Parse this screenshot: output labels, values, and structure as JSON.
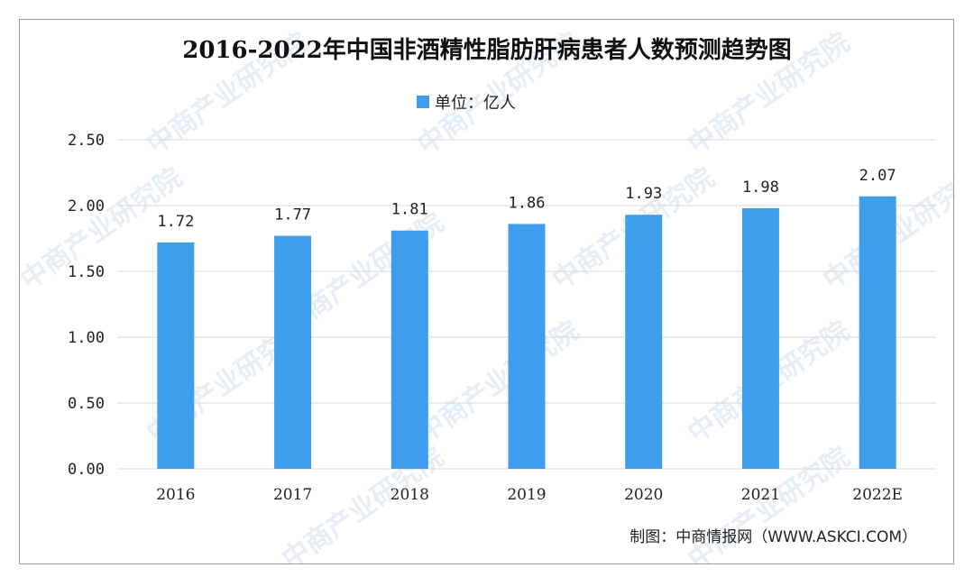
{
  "chart_data": {
    "type": "bar",
    "title": "2016-2022年中国非酒精性脂肪肝病患者人数预测趋势图",
    "legend": "单位：亿人",
    "categories": [
      "2016",
      "2017",
      "2018",
      "2019",
      "2020",
      "2021",
      "2022E"
    ],
    "values": [
      1.72,
      1.77,
      1.81,
      1.86,
      1.93,
      1.98,
      2.07
    ],
    "value_labels": [
      "1.72",
      "1.77",
      "1.81",
      "1.86",
      "1.93",
      "1.98",
      "2.07"
    ],
    "yticks": [
      "0.00",
      "0.50",
      "1.00",
      "1.50",
      "2.00",
      "2.50"
    ],
    "ylim": [
      0,
      2.5
    ],
    "grid": true,
    "legend_position": "top-center",
    "color": "#3f9ded"
  },
  "source": "制图：中商情报网（WWW.ASKCI.COM）",
  "watermark": "中商产业研究院"
}
